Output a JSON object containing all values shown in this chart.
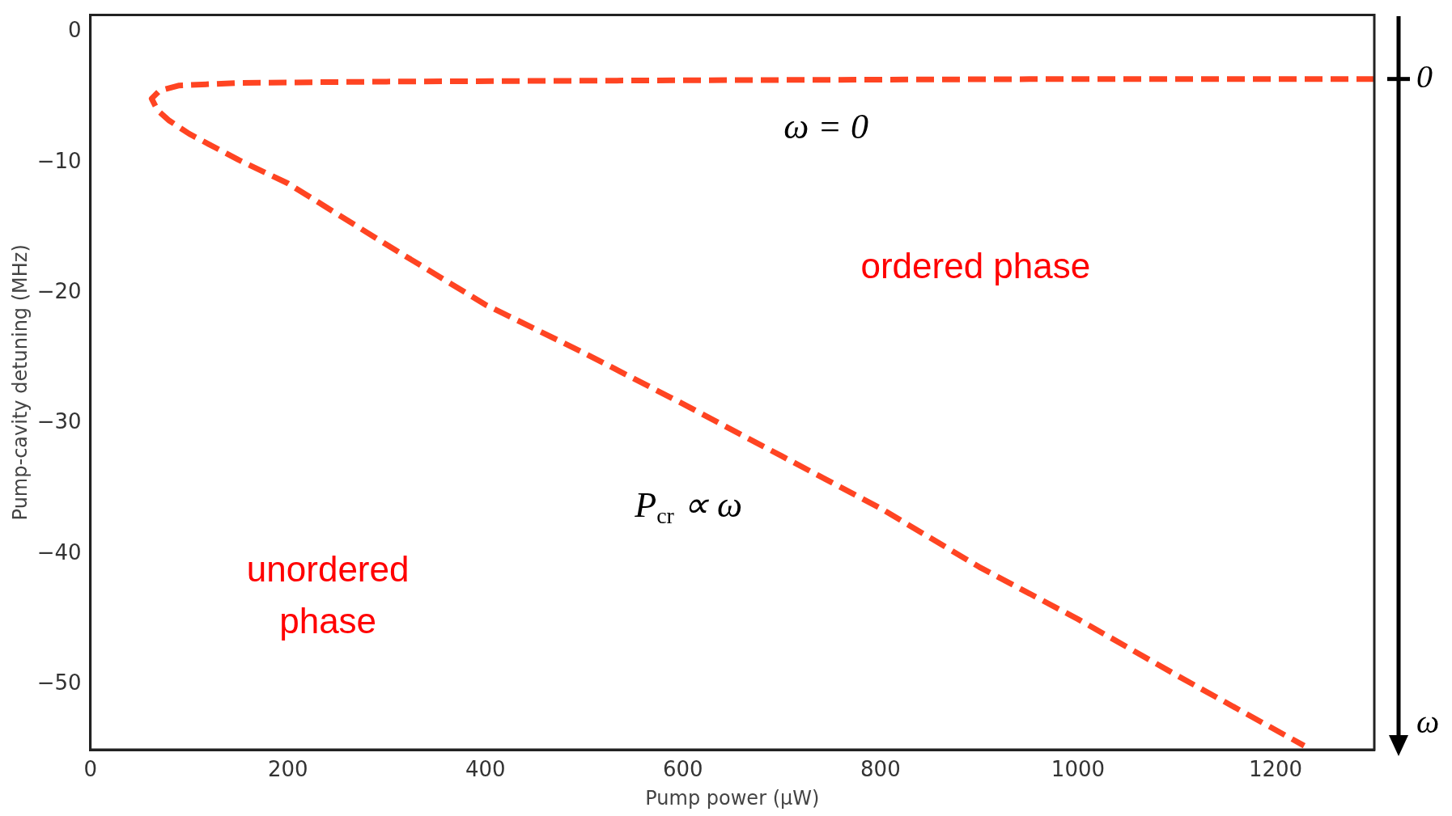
{
  "chart_data": {
    "type": "line",
    "xlabel": "Pump power (μW)",
    "ylabel": "Pump-cavity detuning (MHz)",
    "xlim": [
      0,
      1300
    ],
    "ylim": [
      -55,
      1.3
    ],
    "xticks": [
      0,
      200,
      400,
      600,
      800,
      1000,
      1200
    ],
    "yticks": [
      0,
      -10,
      -20,
      -30,
      -40,
      -50
    ],
    "grid": false,
    "legend": false,
    "marker": "none",
    "line_style": "dashed",
    "series": [
      {
        "color": "#ff4422",
        "x": [
          1300,
          1000,
          600,
          300,
          150,
          90,
          70,
          62,
          68,
          80,
          100,
          150,
          200,
          300,
          400,
          500,
          600,
          700,
          800,
          900,
          1000,
          1100,
          1229
        ],
        "values": [
          -3.6,
          -3.6,
          -3.7,
          -3.8,
          -3.9,
          -4.1,
          -4.5,
          -5.1,
          -6,
          -6.8,
          -7.8,
          -9.8,
          -11.6,
          -16.3,
          -20.9,
          -24.6,
          -28.5,
          -32.5,
          -36.5,
          -41,
          -45,
          -49.3,
          -54.7
        ]
      }
    ],
    "annotations": [
      "ω = 0",
      "ordered phase",
      "unordered phase",
      "P$_{cr}$ ∝ ω",
      "0",
      "ω"
    ]
  }
}
